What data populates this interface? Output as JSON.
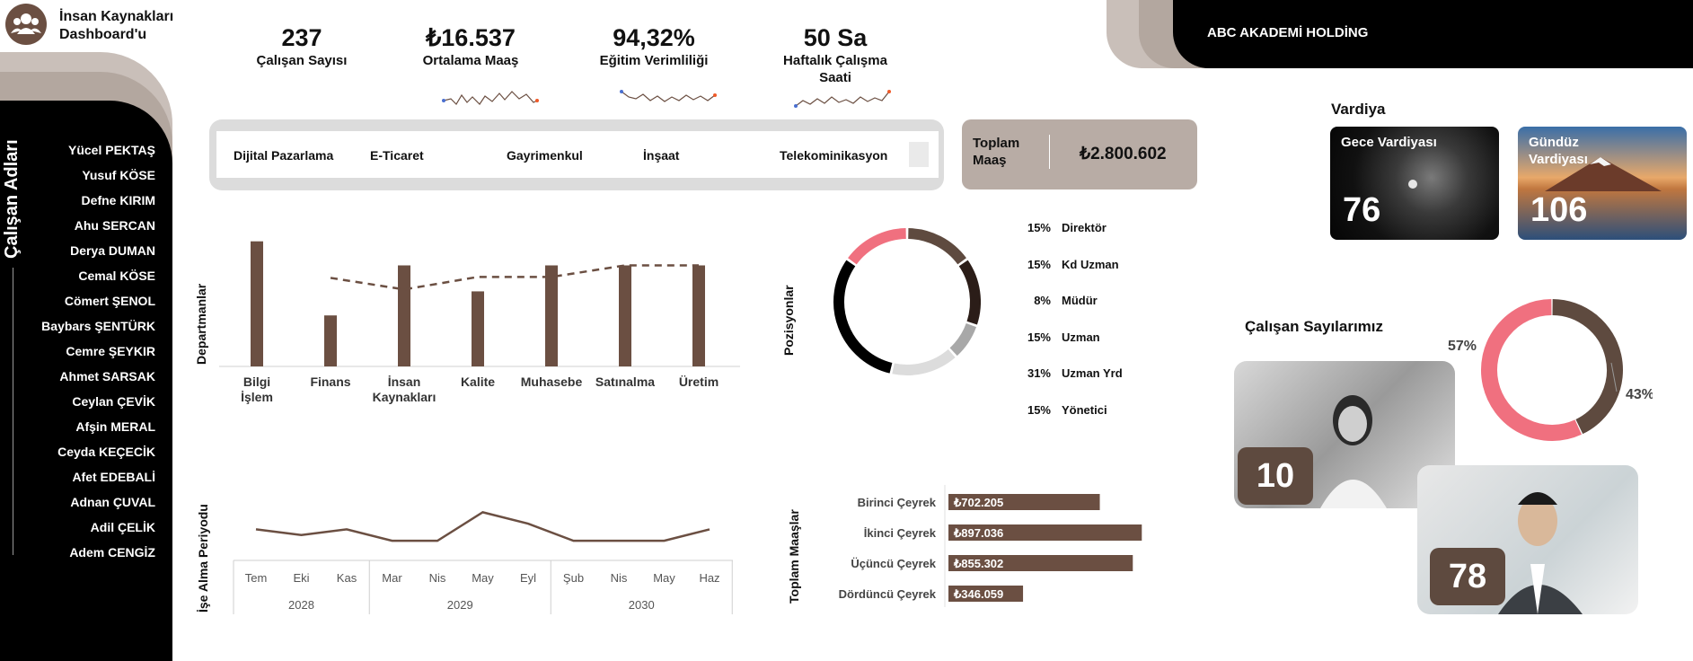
{
  "header": {
    "app_title_line1": "İnsan Kaynakları",
    "app_title_line2": "Dashboard'u",
    "company": "ABC AKADEMİ HOLDİNG"
  },
  "sidebar": {
    "title": "Çalışan Adları",
    "names": [
      "Yücel PEKTAŞ",
      "Yusuf KÖSE",
      "Defne KIRIM",
      "Ahu SERCAN",
      "Derya DUMAN",
      "Cemal KÖSE",
      "Cömert ŞENOL",
      "Baybars ŞENTÜRK",
      "Cemre ŞEYKIR",
      "Ahmet SARSAK",
      "Ceylan ÇEVİK",
      "Afşin MERAL",
      "Ceyda KEÇECİK",
      "Afet EDEBALİ",
      "Adnan ÇUVAL",
      "Adil ÇELİK",
      "Adem CENGİZ"
    ]
  },
  "kpis": [
    {
      "value": "237",
      "label": "Çalışan Sayısı"
    },
    {
      "value": "₺16.537",
      "label": "Ortalama Maaş"
    },
    {
      "value": "94,32%",
      "label": "Eğitim Verimliliği"
    },
    {
      "value": "50  Sa",
      "label": "Haftalık Çalışma Saati"
    }
  ],
  "slicer": {
    "items": [
      "Dijital Pazarlama",
      "E-Ticaret",
      "Gayrimenkul",
      "İnşaat",
      "Telekominikasyon"
    ]
  },
  "total_salary": {
    "label": "Toplam Maaş",
    "value": "₺2.800.602"
  },
  "shifts": {
    "title": "Vardiya",
    "night_label": "Gece Vardiyası",
    "night_value": "76",
    "day_label": "Gündüz Vardiyası",
    "day_value": "106"
  },
  "employees": {
    "title": "Çalışan Sayılarımız",
    "count_a": "10",
    "count_b": "78",
    "pct_left": "57%",
    "pct_right": "43%"
  },
  "colors": {
    "brown": "#6b4f42",
    "pink": "#f0707f",
    "black": "#000000",
    "tan": "#b8aca5"
  },
  "chart_data": [
    {
      "type": "bar",
      "ylabel": "Departmanlar",
      "categories": [
        "Bilgi İşlem",
        "Finans",
        "İnsan Kaynakları",
        "Kalite",
        "Muhasebe",
        "Satınalma",
        "Üretim"
      ],
      "values": [
        130,
        53,
        105,
        78,
        105,
        105,
        105
      ],
      "line": [
        null,
        92,
        80,
        93,
        93,
        105,
        105
      ]
    },
    {
      "type": "pie",
      "ylabel": "Pozisyonlar",
      "labels": [
        "Direktör",
        "Kd Uzman",
        "Müdür",
        "Uzman",
        "Uzman Yrd",
        "Yönetici"
      ],
      "pct_labels": [
        "15%",
        "15%",
        "8%",
        "15%",
        "31%",
        "15%"
      ],
      "values": [
        15,
        15,
        8,
        15,
        31,
        15
      ],
      "colors": [
        "#5e4a3f",
        "#2b1d18",
        "#a8a8a8",
        "#dcdcdc",
        "#000000",
        "#f0707f"
      ]
    },
    {
      "type": "line",
      "ylabel": "İşe Alma Periyodu",
      "months": [
        "Tem",
        "Eki",
        "Kas",
        "Mar",
        "Nis",
        "May",
        "Eyl",
        "Şub",
        "Nis",
        "May",
        "Haz"
      ],
      "years": [
        "2028",
        "2029",
        "2030"
      ],
      "year_spans": [
        3,
        4,
        4
      ],
      "values": [
        5,
        4,
        5,
        3,
        3,
        8,
        6,
        3,
        3,
        3,
        5
      ]
    },
    {
      "type": "bar",
      "ylabel": "Toplam Maaşlar",
      "categories": [
        "Birinci Çeyrek",
        "İkinci Çeyrek",
        "Üçüncü Çeyrek",
        "Dördüncü Çeyrek"
      ],
      "values": [
        702205,
        897036,
        855302,
        346059
      ],
      "labels": [
        "₺702.205",
        "₺897.036",
        "₺855.302",
        "₺346.059"
      ]
    },
    {
      "type": "pie",
      "labels": [
        "57%",
        "43%"
      ],
      "values": [
        57,
        43
      ],
      "colors": [
        "#f0707f",
        "#5e4a3f"
      ]
    }
  ]
}
